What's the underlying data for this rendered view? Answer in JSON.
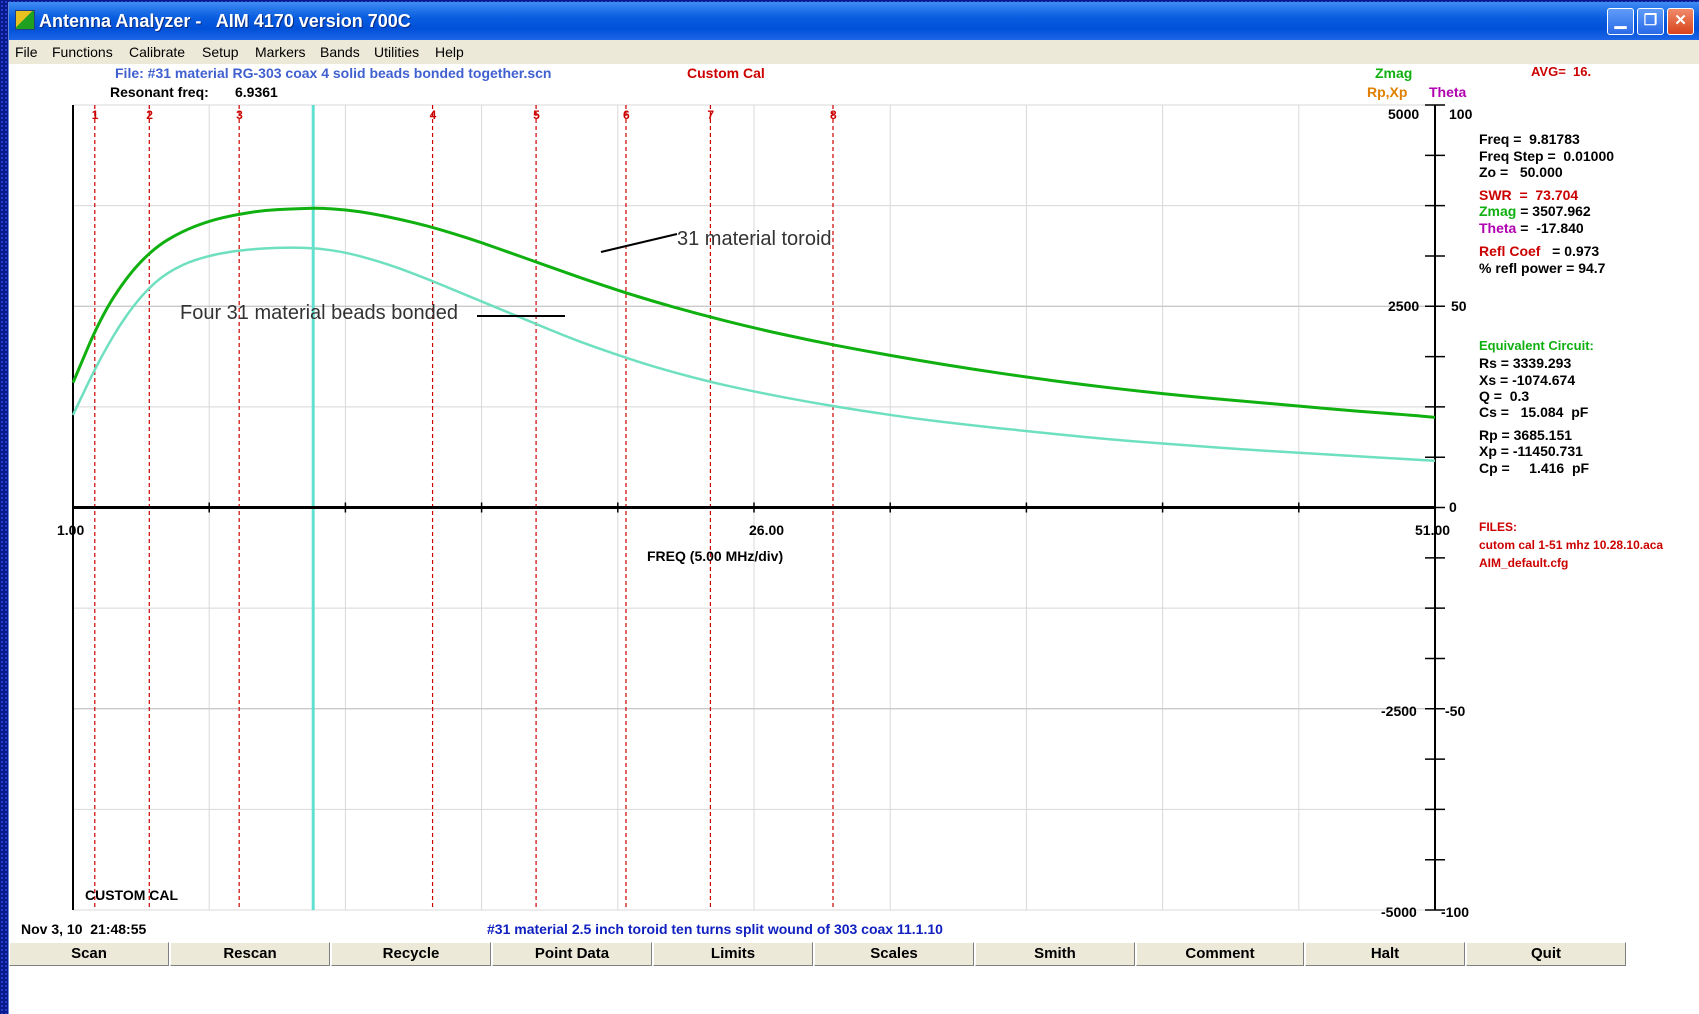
{
  "window": {
    "title": "Antenna Analyzer -   AIM 4170 version 700C"
  },
  "menu": [
    "File",
    "Functions",
    "Calibrate",
    "Setup",
    "Markers",
    "Bands",
    "Utilities",
    "Help"
  ],
  "header": {
    "file": "File: #31 material RG-303 coax 4 solid beads bonded together.scn",
    "custom_cal": "Custom Cal",
    "resonant_label": "Resonant freq:",
    "resonant_value": "6.9361",
    "legend_zmag": "Zmag",
    "legend_rpxp": "Rp,Xp",
    "legend_theta": "Theta",
    "avg": "AVG=  16."
  },
  "readout": {
    "freq": "Freq =  9.81783",
    "freq_step": "Freq Step =  0.01000",
    "zo": "Zo =   50.000",
    "swr": "SWR  =  73.704",
    "zmag_label": "Zmag",
    "zmag_value": " = 3507.962",
    "theta_label": "Theta",
    "theta_value": " =  -17.840",
    "refl_label": "Refl Coef",
    "refl_value": "   = 0.973",
    "refl_power": "% refl power = 94.7"
  },
  "equivalent": {
    "heading": "Equivalent Circuit:",
    "rs": "Rs = 3339.293",
    "xs": "Xs = -1074.674",
    "q": "Q =  0.3",
    "cs": "Cs =   15.084  pF",
    "rp": "Rp = 3685.151",
    "xp": "Xp = -11450.731",
    "cp": "Cp =     1.416  pF"
  },
  "files": {
    "heading": "FILES:",
    "cal": "cutom cal 1-51 mhz 10.28.10.aca",
    "cfg": "AIM_default.cfg"
  },
  "axes": {
    "x_min": "1.00",
    "x_mid": "26.00",
    "x_max": "51.00",
    "x_label": "FREQ (5.00 MHz/div)",
    "left_ticks": [
      "5000",
      "2500",
      "0",
      "-2500",
      "-5000"
    ],
    "right_ticks": [
      "100",
      "50",
      "-50",
      "-100"
    ]
  },
  "annotations": {
    "toroid": "31 material toroid",
    "beads": "Four 31 material beads bonded"
  },
  "status": {
    "custom_cal": "CUSTOM CAL",
    "datetime": "Nov 3, 10  21:48:55",
    "comment": "#31 material 2.5 inch toroid ten turns split wound of 303 coax 11.1.10"
  },
  "buttons": [
    "Scan",
    "Rescan",
    "Recycle",
    "Point Data",
    "Limits",
    "Scales",
    "Smith",
    "Comment",
    "Halt",
    "Quit"
  ],
  "colors": {
    "zmag_curve": "#10b010",
    "beads_curve": "#6ee0c0",
    "marker_line": "#cc0000",
    "cursor_line": "#60e0d0",
    "swr": "#cc0000",
    "zmag": "#10b010",
    "theta": "#b000b0",
    "rpxp": "#e08000",
    "file": "#4060d0",
    "comment": "#1020c0"
  },
  "chart_data": {
    "type": "line",
    "x_range": [
      1,
      51
    ],
    "y_range_left": [
      -5000,
      5000
    ],
    "y_range_right": [
      -100,
      100
    ],
    "grid": true,
    "cursor_x": 9.81783,
    "markers": [
      {
        "label": "1",
        "x": 1.8
      },
      {
        "label": "2",
        "x": 3.8
      },
      {
        "label": "3",
        "x": 7.1
      },
      {
        "label": "4",
        "x": 14.2
      },
      {
        "label": "5",
        "x": 18.0
      },
      {
        "label": "6",
        "x": 21.3
      },
      {
        "label": "7",
        "x": 24.4
      },
      {
        "label": "8",
        "x": 28.9
      }
    ],
    "series": [
      {
        "name": "31 material toroid",
        "x": [
          1,
          2,
          3,
          4,
          5,
          6,
          7,
          8,
          9,
          10,
          11,
          12,
          13,
          14,
          15,
          16,
          17,
          18,
          19,
          20,
          22,
          24,
          26,
          28,
          30,
          32,
          34,
          36,
          38,
          40,
          42,
          44,
          46,
          48,
          50,
          51
        ],
        "y": [
          1550,
          2350,
          2880,
          3230,
          3430,
          3560,
          3640,
          3690,
          3710,
          3720,
          3700,
          3650,
          3580,
          3500,
          3400,
          3290,
          3170,
          3050,
          2930,
          2810,
          2590,
          2400,
          2230,
          2080,
          1950,
          1830,
          1720,
          1620,
          1530,
          1450,
          1380,
          1320,
          1260,
          1200,
          1150,
          1120
        ]
      },
      {
        "name": "Four 31 material beads bonded",
        "x": [
          1,
          2,
          3,
          4,
          5,
          6,
          7,
          8,
          9,
          10,
          11,
          12,
          13,
          14,
          15,
          16,
          17,
          18,
          19,
          20,
          22,
          24,
          26,
          28,
          30,
          32,
          34,
          36,
          38,
          40,
          42,
          44,
          46,
          48,
          50,
          51
        ],
        "y": [
          1150,
          1860,
          2420,
          2810,
          3020,
          3130,
          3190,
          3220,
          3230,
          3220,
          3170,
          3080,
          2970,
          2840,
          2700,
          2560,
          2420,
          2280,
          2140,
          2010,
          1780,
          1590,
          1440,
          1310,
          1200,
          1100,
          1020,
          950,
          880,
          820,
          770,
          720,
          680,
          640,
          600,
          580
        ]
      }
    ]
  }
}
